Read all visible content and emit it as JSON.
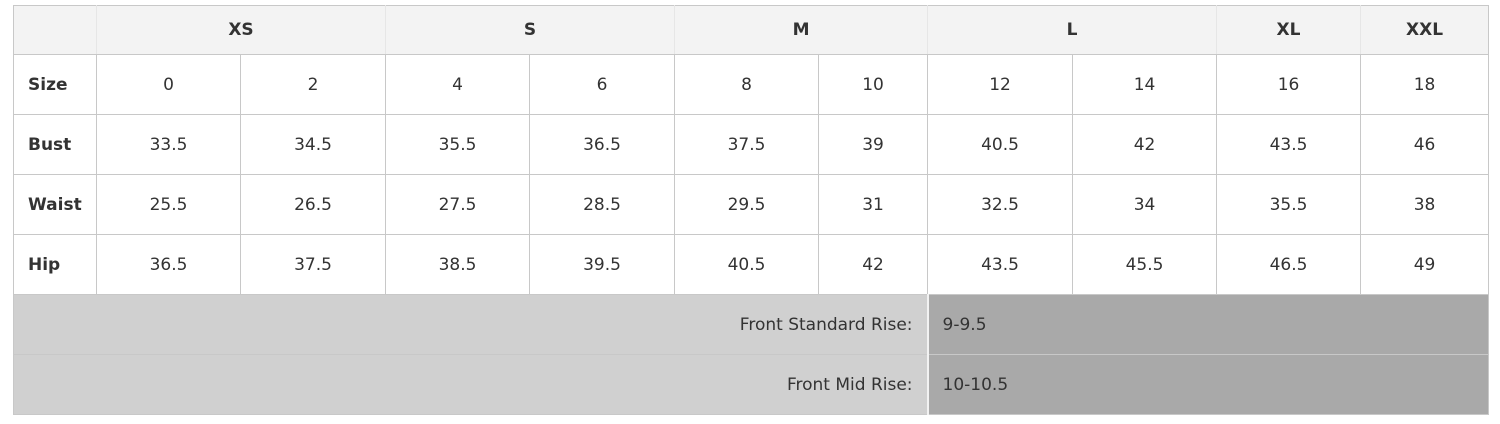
{
  "size_groups": [
    {
      "label": "XS",
      "span": 2
    },
    {
      "label": "S",
      "span": 2
    },
    {
      "label": "M",
      "span": 2
    },
    {
      "label": "L",
      "span": 2
    },
    {
      "label": "XL",
      "span": 1
    },
    {
      "label": "XXL",
      "span": 1
    }
  ],
  "rows": [
    {
      "label": "Size",
      "values": [
        "0",
        "2",
        "4",
        "6",
        "8",
        "10",
        "12",
        "14",
        "16",
        "18"
      ]
    },
    {
      "label": "Bust",
      "values": [
        "33.5",
        "34.5",
        "35.5",
        "36.5",
        "37.5",
        "39",
        "40.5",
        "42",
        "43.5",
        "46"
      ]
    },
    {
      "label": "Waist",
      "values": [
        "25.5",
        "26.5",
        "27.5",
        "28.5",
        "29.5",
        "31",
        "32.5",
        "34",
        "35.5",
        "38"
      ]
    },
    {
      "label": "Hip",
      "values": [
        "36.5",
        "37.5",
        "38.5",
        "39.5",
        "40.5",
        "42",
        "43.5",
        "45.5",
        "46.5",
        "49"
      ]
    }
  ],
  "measurements": [
    {
      "label": "Front Standard Rise:",
      "value": "9-9.5"
    },
    {
      "label": "Front Mid Rise:",
      "value": "10-10.5"
    }
  ],
  "colors": {
    "header_bg": "#f3f3f3",
    "measure_label_bg": "#d0d0d0",
    "measure_value_bg": "#a9a9a9",
    "border": "#c8c8c8"
  }
}
